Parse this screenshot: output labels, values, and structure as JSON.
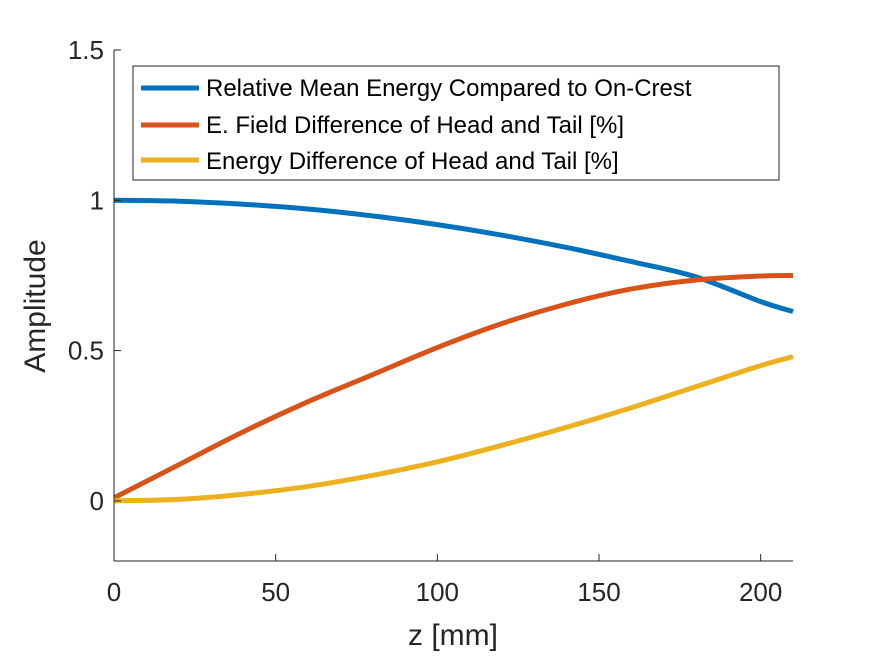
{
  "chart_data": {
    "type": "line",
    "title": "",
    "xlabel": "z [mm]",
    "ylabel": "Amplitude",
    "xlim": [
      0,
      210
    ],
    "ylim": [
      -0.2,
      1.5
    ],
    "xticks": [
      0,
      50,
      100,
      150,
      200
    ],
    "xtick_labels": [
      "0",
      "50",
      "100",
      "150",
      "200"
    ],
    "yticks": [
      0,
      0.5,
      1,
      1.5
    ],
    "ytick_labels": [
      "0",
      "0.5",
      "1",
      "1.5"
    ],
    "grid": false,
    "legend_position": "top-right",
    "series": [
      {
        "name": "Relative Mean Energy Compared to On-Crest",
        "color": "#0072BD",
        "x": [
          0,
          20,
          40,
          60,
          80,
          100,
          120,
          140,
          160,
          180,
          200,
          210
        ],
        "y": [
          1.0,
          0.997,
          0.987,
          0.971,
          0.948,
          0.919,
          0.884,
          0.843,
          0.796,
          0.745,
          0.663,
          0.63
        ]
      },
      {
        "name": "E. Field Difference of Head and Tail [%]",
        "color": "#D95319",
        "x": [
          0,
          20,
          40,
          60,
          80,
          100,
          120,
          140,
          160,
          180,
          200,
          210
        ],
        "y": [
          0.01,
          0.12,
          0.23,
          0.33,
          0.42,
          0.51,
          0.59,
          0.655,
          0.705,
          0.735,
          0.748,
          0.75
        ]
      },
      {
        "name": "Energy Difference of Head and Tail [%]",
        "color": "#EDB120",
        "x": [
          0,
          20,
          40,
          60,
          80,
          100,
          120,
          140,
          160,
          180,
          200,
          210
        ],
        "y": [
          0.0,
          0.005,
          0.022,
          0.048,
          0.085,
          0.13,
          0.185,
          0.245,
          0.31,
          0.38,
          0.45,
          0.48
        ]
      }
    ]
  }
}
